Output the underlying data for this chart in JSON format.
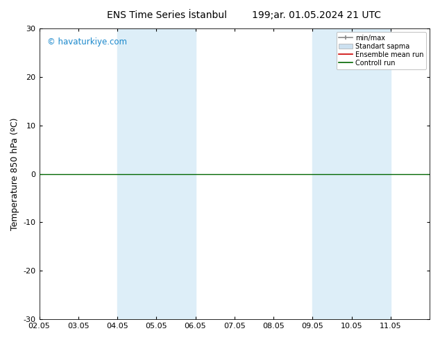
{
  "title_left": "ENS Time Series İstanbul",
  "title_right": "199;ar. 01.05.2024 21 UTC",
  "ylabel": "Temperature 850 hPa (ºC)",
  "watermark": "© havaturkiye.com",
  "watermark_color": "#1a88cc",
  "xlim_start": 0,
  "xlim_end": 10,
  "ylim": [
    -30,
    30
  ],
  "yticks": [
    -30,
    -20,
    -10,
    0,
    10,
    20,
    30
  ],
  "xtick_labels": [
    "02.05",
    "03.05",
    "04.05",
    "05.05",
    "06.05",
    "07.05",
    "08.05",
    "09.05",
    "10.05",
    "11.05"
  ],
  "xtick_positions": [
    0,
    1,
    2,
    3,
    4,
    5,
    6,
    7,
    8,
    9
  ],
  "shaded_bands": [
    {
      "x_start": 2,
      "x_end": 3,
      "color": "#ddeef8"
    },
    {
      "x_start": 3,
      "x_end": 4,
      "color": "#ddeef8"
    },
    {
      "x_start": 7,
      "x_end": 8,
      "color": "#ddeef8"
    },
    {
      "x_start": 8,
      "x_end": 9,
      "color": "#ddeef8"
    }
  ],
  "green_line_y": 0.0,
  "control_run_color": "#006600",
  "ensemble_mean_color": "#cc0000",
  "minmax_color": "#888888",
  "stddev_color": "#cce0f0",
  "background_color": "#ffffff",
  "plot_bg_color": "#ffffff",
  "title_fontsize": 10,
  "axis_label_fontsize": 9,
  "tick_fontsize": 8,
  "legend_fontsize": 7
}
